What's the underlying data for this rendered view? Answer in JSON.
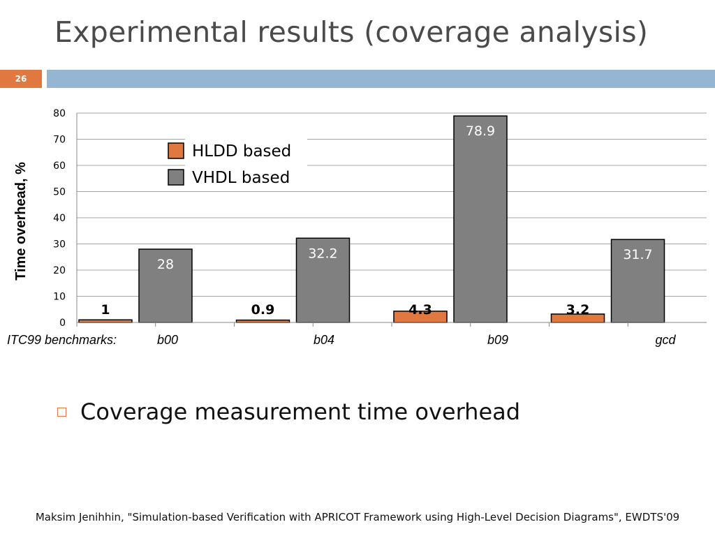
{
  "slide": {
    "title": "Experimental results (coverage analysis)",
    "number": "26",
    "bullet": "Coverage measurement time overhead",
    "footer": "Maksim Jenihhin, \"Simulation-based Verification with APRICOT Framework using High-Level Decision Diagrams\", EWDTS'09"
  },
  "colors": {
    "accent": "#e0783f",
    "bar_blue": "#94b6d2",
    "hldd": "#e0783f",
    "vhdl": "#808080"
  },
  "chart_data": {
    "type": "bar",
    "categories": [
      "b00",
      "b04",
      "b09",
      "gcd"
    ],
    "category_prefix": "ITC99 benchmarks:",
    "series": [
      {
        "name": "HLDD based",
        "values": [
          1,
          0.9,
          4.3,
          3.2
        ],
        "labels": [
          "1",
          "0.9",
          "4.3",
          "3.2"
        ]
      },
      {
        "name": "VHDL based",
        "values": [
          28,
          32.2,
          78.9,
          31.7
        ],
        "labels": [
          "28",
          "32.2",
          "78.9",
          "31.7"
        ]
      }
    ],
    "ylabel": "Time overhead, %",
    "ylim": [
      0,
      80
    ],
    "yticks": [
      0,
      10,
      20,
      30,
      40,
      50,
      60,
      70,
      80
    ],
    "grid": true,
    "legend": "top-left"
  }
}
